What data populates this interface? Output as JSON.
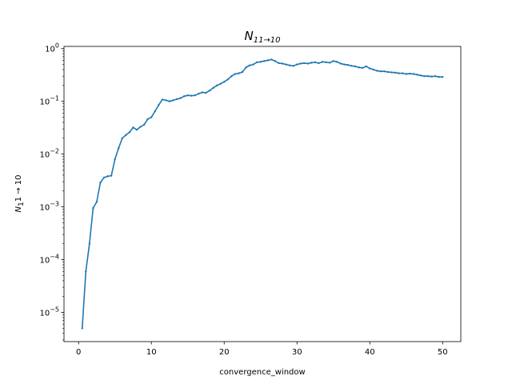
{
  "chart_data": {
    "type": "line",
    "title": "N_{11→10}",
    "title_main": "N",
    "title_sub": "11→10",
    "xlabel": "convergence_window",
    "ylabel_main": "N",
    "ylabel_sub": "1",
    "ylabel_rest": "1 → 10",
    "xlim": [
      -2,
      52.5
    ],
    "ylim": [
      2.8e-06,
      1.1
    ],
    "yscale": "log",
    "grid": false,
    "line_color": "#1f77b4",
    "x_ticks": [
      0,
      10,
      20,
      30,
      40,
      50
    ],
    "x_tick_labels": [
      "0",
      "10",
      "20",
      "30",
      "40",
      "50"
    ],
    "y_ticks": [
      1e-05,
      0.0001,
      0.001,
      0.01,
      0.1,
      1
    ],
    "y_tick_bases": [
      "10",
      "10",
      "10",
      "10",
      "10",
      "10"
    ],
    "y_tick_exps": [
      "−5",
      "−4",
      "−3",
      "−2",
      "−1",
      "0"
    ],
    "series": [
      {
        "x": [
          0.5,
          1.0,
          1.5,
          2.0,
          2.5,
          3.0,
          3.5,
          4.0,
          4.5,
          5.0,
          5.5,
          6.0,
          6.5,
          7.0,
          7.5,
          8.0,
          8.5,
          9.0,
          9.5,
          10.0,
          10.5,
          11.0,
          11.5,
          12.0,
          12.5,
          13.0,
          13.5,
          14.0,
          14.5,
          15.0,
          15.5,
          16.0,
          16.5,
          17.0,
          17.5,
          18.0,
          18.5,
          19.0,
          19.5,
          20.0,
          20.5,
          21.0,
          21.5,
          22.0,
          22.5,
          23.0,
          23.5,
          24.0,
          24.5,
          25.0,
          25.5,
          26.0,
          26.5,
          27.0,
          27.5,
          28.0,
          28.5,
          29.0,
          29.5,
          30.0,
          30.5,
          31.0,
          31.5,
          32.0,
          32.5,
          33.0,
          33.5,
          34.0,
          34.5,
          35.0,
          35.5,
          36.0,
          36.5,
          37.0,
          37.5,
          38.0,
          38.5,
          39.0,
          39.5,
          40.0,
          40.5,
          41.0,
          41.5,
          42.0,
          42.5,
          43.0,
          43.5,
          44.0,
          44.5,
          45.0,
          45.5,
          46.0,
          46.5,
          47.0,
          47.5,
          48.0,
          48.5,
          49.0,
          49.5,
          50.0
        ],
        "y": [
          5e-06,
          6e-05,
          0.0002,
          0.00095,
          0.00125,
          0.0029,
          0.0036,
          0.0038,
          0.0039,
          0.008,
          0.013,
          0.02,
          0.023,
          0.026,
          0.032,
          0.029,
          0.033,
          0.036,
          0.046,
          0.05,
          0.065,
          0.085,
          0.108,
          0.105,
          0.1,
          0.105,
          0.11,
          0.115,
          0.125,
          0.13,
          0.128,
          0.13,
          0.14,
          0.148,
          0.145,
          0.16,
          0.18,
          0.2,
          0.215,
          0.235,
          0.26,
          0.3,
          0.33,
          0.34,
          0.36,
          0.44,
          0.48,
          0.5,
          0.55,
          0.56,
          0.58,
          0.6,
          0.62,
          0.58,
          0.53,
          0.52,
          0.5,
          0.48,
          0.47,
          0.5,
          0.52,
          0.53,
          0.52,
          0.54,
          0.55,
          0.53,
          0.56,
          0.55,
          0.54,
          0.58,
          0.56,
          0.52,
          0.5,
          0.49,
          0.47,
          0.46,
          0.44,
          0.43,
          0.46,
          0.42,
          0.4,
          0.38,
          0.37,
          0.37,
          0.36,
          0.355,
          0.35,
          0.34,
          0.34,
          0.33,
          0.335,
          0.33,
          0.32,
          0.31,
          0.3,
          0.3,
          0.295,
          0.3,
          0.29,
          0.29
        ]
      }
    ]
  }
}
